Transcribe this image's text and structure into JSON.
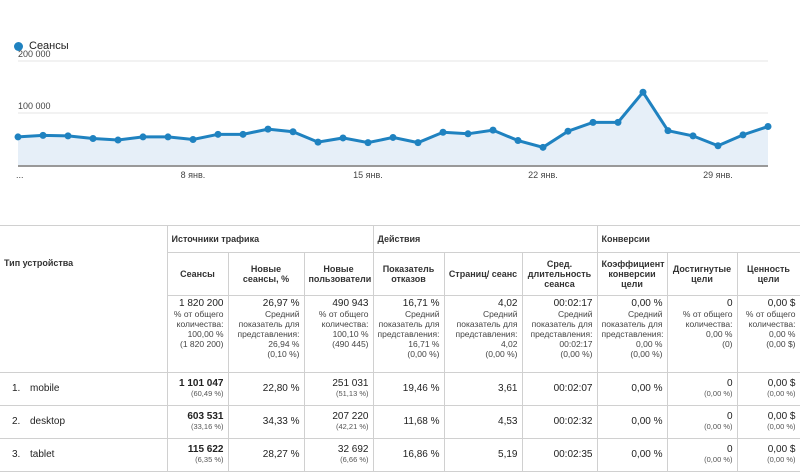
{
  "legend": {
    "label": "Сеансы",
    "color": "#1f82c0"
  },
  "chart_data": {
    "type": "area",
    "series": [
      {
        "name": "Сеансы",
        "values": [
          54000,
          57000,
          56000,
          51000,
          48000,
          54000,
          54000,
          49000,
          59000,
          59000,
          69000,
          64000,
          44000,
          52000,
          43000,
          53000,
          43000,
          63000,
          60000,
          67000,
          47000,
          34000,
          65000,
          82000,
          82000,
          140000,
          66000,
          56000,
          37000,
          58000,
          74000
        ]
      }
    ],
    "x": [
      1,
      2,
      3,
      4,
      5,
      6,
      7,
      8,
      9,
      10,
      11,
      12,
      13,
      14,
      15,
      16,
      17,
      18,
      19,
      20,
      21,
      22,
      23,
      24,
      25,
      26,
      27,
      28,
      29,
      30,
      31
    ],
    "x_ticks": [
      {
        "x": 1,
        "label": "..."
      },
      {
        "x": 8,
        "label": "8 янв."
      },
      {
        "x": 15,
        "label": "15 янв."
      },
      {
        "x": 22,
        "label": "22 янв."
      },
      {
        "x": 29,
        "label": "29 янв."
      }
    ],
    "y_ticks": [
      {
        "y": 100000,
        "label": "100 000"
      },
      {
        "y": 200000,
        "label": "200 000"
      }
    ],
    "ylim": [
      0,
      200000
    ],
    "grid": true,
    "color": "#1f82c0",
    "fill": "#e6eff8"
  },
  "table": {
    "dimension": "Тип устройства",
    "groups": [
      {
        "label": "Источники трафика",
        "span": 3
      },
      {
        "label": "Действия",
        "span": 3
      },
      {
        "label": "Конверсии",
        "span": 3
      }
    ],
    "columns": [
      "Сеансы",
      "Новые сеансы, %",
      "Новые пользователи",
      "Показатель отказов",
      "Страниц/ сеанс",
      "Сред. длительность сеанса",
      "Коэффициент конверсии цели",
      "Достигнутые цели",
      "Ценность цели"
    ],
    "totals": [
      {
        "main": "1 820 200",
        "lines": [
          "% от общего количества:",
          "100,00 %",
          "(1 820 200)"
        ]
      },
      {
        "main": "26,97 %",
        "lines": [
          "Средний показатель для представления:",
          "26,94 %",
          "(0,10 %)"
        ]
      },
      {
        "main": "490 943",
        "lines": [
          "% от общего количества:",
          "100,10 %",
          "(490 445)"
        ]
      },
      {
        "main": "16,71 %",
        "lines": [
          "Средний показатель для представления:",
          "16,71 %",
          "(0,00 %)"
        ]
      },
      {
        "main": "4,02",
        "lines": [
          "Средний показатель для представления:",
          "4,02",
          "(0,00 %)"
        ]
      },
      {
        "main": "00:02:17",
        "lines": [
          "Средний показатель для представления:",
          "00:02:17",
          "(0,00 %)"
        ]
      },
      {
        "main": "0,00 %",
        "lines": [
          "Средний показатель для представления:",
          "0,00 %",
          "(0,00 %)"
        ]
      },
      {
        "main": "0",
        "lines": [
          "% от общего количества:",
          "0,00 %",
          "(0)"
        ]
      },
      {
        "main": "0,00 $",
        "lines": [
          "% от общего количества:",
          "0,00 %",
          "(0,00 $)"
        ]
      }
    ],
    "rows": [
      {
        "index": "1.",
        "label": "mobile",
        "cells": [
          {
            "v": "1 101 047",
            "s": "(60,49 %)"
          },
          {
            "v": "22,80 %"
          },
          {
            "v": "251 031",
            "s": "(51,13 %)"
          },
          {
            "v": "19,46 %"
          },
          {
            "v": "3,61"
          },
          {
            "v": "00:02:07"
          },
          {
            "v": "0,00 %"
          },
          {
            "v": "0",
            "s": "(0,00 %)"
          },
          {
            "v": "0,00 $",
            "s": "(0,00 %)"
          }
        ]
      },
      {
        "index": "2.",
        "label": "desktop",
        "cells": [
          {
            "v": "603 531",
            "s": "(33,16 %)"
          },
          {
            "v": "34,33 %"
          },
          {
            "v": "207 220",
            "s": "(42,21 %)"
          },
          {
            "v": "11,68 %"
          },
          {
            "v": "4,53"
          },
          {
            "v": "00:02:32"
          },
          {
            "v": "0,00 %"
          },
          {
            "v": "0",
            "s": "(0,00 %)"
          },
          {
            "v": "0,00 $",
            "s": "(0,00 %)"
          }
        ]
      },
      {
        "index": "3.",
        "label": "tablet",
        "cells": [
          {
            "v": "115 622",
            "s": "(6,35 %)"
          },
          {
            "v": "28,27 %"
          },
          {
            "v": "32 692",
            "s": "(6,66 %)"
          },
          {
            "v": "16,86 %"
          },
          {
            "v": "5,19"
          },
          {
            "v": "00:02:35"
          },
          {
            "v": "0,00 %"
          },
          {
            "v": "0",
            "s": "(0,00 %)"
          },
          {
            "v": "0,00 $",
            "s": "(0,00 %)"
          }
        ]
      }
    ]
  }
}
